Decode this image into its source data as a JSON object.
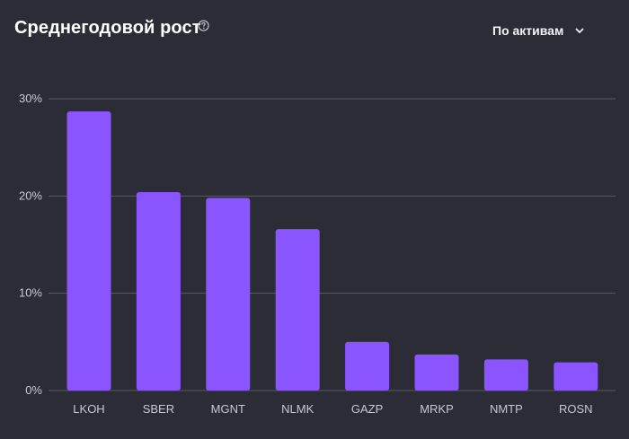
{
  "header": {
    "title": "Среднегодовой рост",
    "help_icon": "question-circle-icon",
    "dropdown_label": "По активам",
    "dropdown_icon": "chevron-down-icon"
  },
  "colors": {
    "background": "#2c2c37",
    "bar": "#8a55ff",
    "grid": "#5a5a66",
    "axis_text": "#c8c8d2"
  },
  "chart_data": {
    "type": "bar",
    "categories": [
      "LKOH",
      "SBER",
      "MGNT",
      "NLMK",
      "GAZP",
      "MRKP",
      "NMTP",
      "ROSN"
    ],
    "values": [
      28.7,
      20.4,
      19.8,
      16.6,
      5.0,
      3.7,
      3.2,
      2.9
    ],
    "title": "Среднегодовой рост",
    "xlabel": "",
    "ylabel": "",
    "ylim": [
      0,
      30
    ],
    "yticks": [
      0,
      10,
      20,
      30
    ],
    "ytick_labels": [
      "0%",
      "10%",
      "20%",
      "30%"
    ],
    "grid": true,
    "legend": "none"
  }
}
